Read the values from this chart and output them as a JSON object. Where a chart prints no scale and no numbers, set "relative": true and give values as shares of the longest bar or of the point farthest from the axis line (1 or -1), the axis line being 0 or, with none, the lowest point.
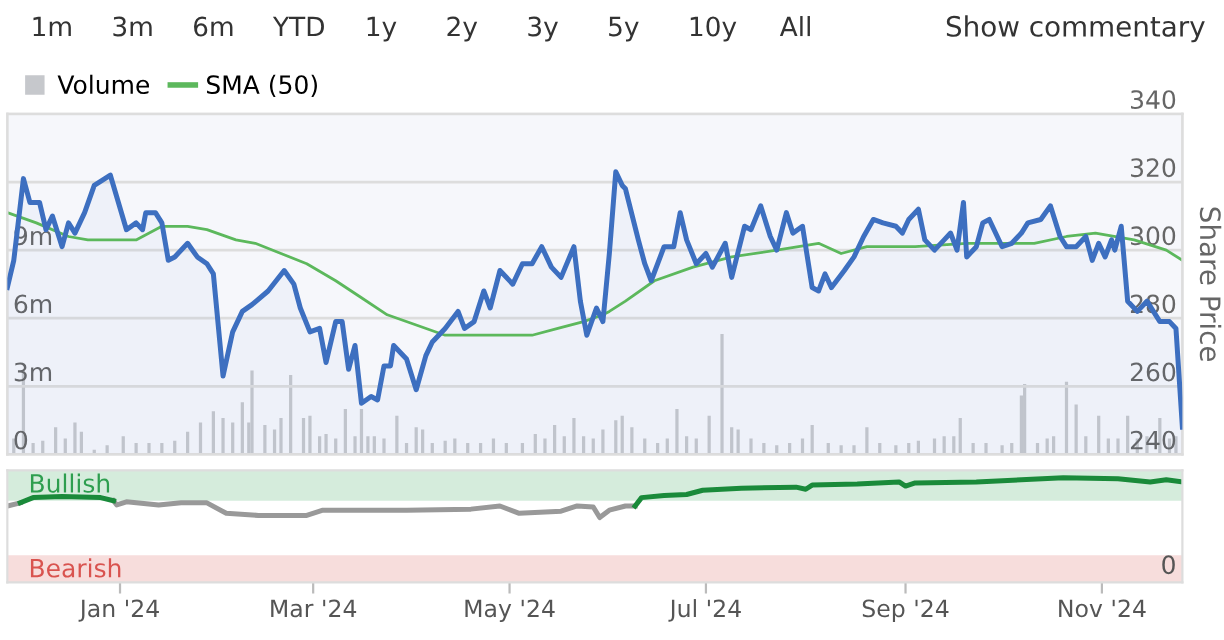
{
  "chart_data": [
    {
      "type": "area",
      "xlim": [
        "2023-11-27",
        "2024-11-26"
      ],
      "ylim": [
        0,
        15
      ],
      "yticks": [
        0,
        {
          "value": 3,
          "label": "3m"
        },
        {
          "value": 6,
          "label": "6m"
        },
        {
          "value": 9,
          "label": "9m"
        }
      ],
      "y2lim": [
        240,
        340
      ],
      "y2ticks": [
        240,
        260,
        280,
        300,
        320,
        340
      ],
      "y2label": "Share Price",
      "grid": "y",
      "legend": "top left",
      "tick_labels": "y",
      "annotations": [
        "1m",
        "3m",
        "6m",
        "YTD",
        "1y",
        "2y",
        "3y",
        "5y",
        "10y",
        "All",
        "Show commentary"
      ],
      "series": [
        {
          "type": "bar",
          "name": "Volume",
          "color": "#c6c8cc",
          "x": [
            "2023-11-29",
            "2023-12-02",
            "2023-12-05",
            "2023-12-08",
            "2023-12-12",
            "2023-12-15",
            "2023-12-18",
            "2023-12-20",
            "2023-12-24",
            "2023-12-28",
            "2024-01-02",
            "2024-01-06",
            "2024-01-10",
            "2024-01-14",
            "2024-01-18",
            "2024-01-22",
            "2024-01-26",
            "2024-01-30",
            "2024-02-02",
            "2024-02-05",
            "2024-02-08",
            "2024-02-10",
            "2024-02-11",
            "2024-02-15",
            "2024-02-18",
            "2024-02-20",
            "2024-02-23",
            "2024-02-27",
            "2024-02-29",
            "2024-03-03",
            "2024-03-05",
            "2024-03-08",
            "2024-03-11",
            "2024-03-14",
            "2024-03-16",
            "2024-03-18",
            "2024-03-20",
            "2024-03-23",
            "2024-03-27",
            "2024-03-30",
            "2024-04-02",
            "2024-04-04",
            "2024-04-07",
            "2024-04-11",
            "2024-04-14",
            "2024-04-18",
            "2024-04-22",
            "2024-04-26",
            "2024-04-30",
            "2024-05-05",
            "2024-05-09",
            "2024-05-12",
            "2024-05-15",
            "2024-05-18",
            "2024-05-21",
            "2024-05-24",
            "2024-05-27",
            "2024-05-30",
            "2024-06-03",
            "2024-06-05",
            "2024-06-08",
            "2024-06-12",
            "2024-06-16",
            "2024-06-19",
            "2024-06-22",
            "2024-06-25",
            "2024-06-28",
            "2024-07-02",
            "2024-07-06",
            "2024-07-09",
            "2024-07-11",
            "2024-07-15",
            "2024-07-19",
            "2024-07-23",
            "2024-07-27",
            "2024-07-31",
            "2024-08-03",
            "2024-08-08",
            "2024-08-12",
            "2024-08-16",
            "2024-08-20",
            "2024-08-24",
            "2024-08-29",
            "2024-09-02",
            "2024-09-05",
            "2024-09-10",
            "2024-09-13",
            "2024-09-16",
            "2024-09-18",
            "2024-09-22",
            "2024-09-26",
            "2024-10-01",
            "2024-10-04",
            "2024-10-07",
            "2024-10-08",
            "2024-10-12",
            "2024-10-15",
            "2024-10-17",
            "2024-10-21",
            "2024-10-24",
            "2024-10-27",
            "2024-10-31",
            "2024-11-03",
            "2024-11-06",
            "2024-11-09",
            "2024-11-12",
            "2024-11-15",
            "2024-11-19",
            "2024-11-22",
            "2024-11-24"
          ],
          "values": [
            0.7,
            3.7,
            0.5,
            0.6,
            1.2,
            0.7,
            1.4,
            1.0,
            0.2,
            0.4,
            0.8,
            0.5,
            0.5,
            0.5,
            0.6,
            1.0,
            1.4,
            1.9,
            1.6,
            1.4,
            2.3,
            1.4,
            3.7,
            1.3,
            1.1,
            1.6,
            3.5,
            1.6,
            1.7,
            0.8,
            0.9,
            0.7,
            2.0,
            0.8,
            2.0,
            0.8,
            0.8,
            0.7,
            1.7,
            0.5,
            1.2,
            1.1,
            0.5,
            0.6,
            0.7,
            0.5,
            0.5,
            0.7,
            0.5,
            0.5,
            0.9,
            0.7,
            1.3,
            0.8,
            1.6,
            0.8,
            0.7,
            1.1,
            1.5,
            1.7,
            1.2,
            0.7,
            0.5,
            0.7,
            2.0,
            0.8,
            0.7,
            1.7,
            5.3,
            1.2,
            1.1,
            0.7,
            0.5,
            0.4,
            0.5,
            0.7,
            1.3,
            0.5,
            0.4,
            0.4,
            1.2,
            0.5,
            0.4,
            0.5,
            0.6,
            0.7,
            0.8,
            0.8,
            1.6,
            0.5,
            0.5,
            0.4,
            0.5,
            2.6,
            3.1,
            0.5,
            0.7,
            0.8,
            3.2,
            2.2,
            0.8,
            1.7,
            0.7,
            0.7,
            1.7,
            0.7,
            0.8,
            1.6,
            0.7,
            0.8
          ]
        },
        {
          "type": "area",
          "axis": "y2",
          "color": "#3d6fc0",
          "x": [
            "2023-11-27",
            "2023-11-29",
            "2023-12-02",
            "2023-12-04",
            "2023-12-07",
            "2023-12-09",
            "2023-12-11",
            "2023-12-14",
            "2023-12-16",
            "2023-12-18",
            "2023-12-21",
            "2023-12-24",
            "2023-12-29",
            "2024-01-03",
            "2024-01-06",
            "2024-01-08",
            "2024-01-09",
            "2024-01-12",
            "2024-01-14",
            "2024-01-16",
            "2024-01-18",
            "2024-01-22",
            "2024-01-25",
            "2024-01-28",
            "2024-01-30",
            "2024-02-02",
            "2024-02-05",
            "2024-02-08",
            "2024-02-11",
            "2024-02-16",
            "2024-02-21",
            "2024-02-24",
            "2024-02-26",
            "2024-02-29",
            "2024-03-03",
            "2024-03-05",
            "2024-03-08",
            "2024-03-10",
            "2024-03-12",
            "2024-03-14",
            "2024-03-16",
            "2024-03-19",
            "2024-03-21",
            "2024-03-23",
            "2024-03-25",
            "2024-03-26",
            "2024-03-30",
            "2024-04-02",
            "2024-04-05",
            "2024-04-07",
            "2024-04-11",
            "2024-04-15",
            "2024-04-17",
            "2024-04-20",
            "2024-04-23",
            "2024-04-25",
            "2024-04-28",
            "2024-05-02",
            "2024-05-05",
            "2024-05-08",
            "2024-05-11",
            "2024-05-14",
            "2024-05-17",
            "2024-05-21",
            "2024-05-23",
            "2024-05-25",
            "2024-05-28",
            "2024-05-30",
            "2024-06-01",
            "2024-06-03",
            "2024-06-05",
            "2024-06-06",
            "2024-06-10",
            "2024-06-12",
            "2024-06-14",
            "2024-06-18",
            "2024-06-21",
            "2024-06-23",
            "2024-06-25",
            "2024-06-28",
            "2024-07-01",
            "2024-07-03",
            "2024-07-07",
            "2024-07-09",
            "2024-07-13",
            "2024-07-15",
            "2024-07-18",
            "2024-07-21",
            "2024-07-23",
            "2024-07-26",
            "2024-07-28",
            "2024-07-31",
            "2024-08-03",
            "2024-08-05",
            "2024-08-07",
            "2024-08-09",
            "2024-08-13",
            "2024-08-16",
            "2024-08-19",
            "2024-08-22",
            "2024-08-25",
            "2024-08-29",
            "2024-08-31",
            "2024-09-02",
            "2024-09-05",
            "2024-09-07",
            "2024-09-10",
            "2024-09-13",
            "2024-09-15",
            "2024-09-17",
            "2024-09-19",
            "2024-09-20",
            "2024-09-23",
            "2024-09-25",
            "2024-09-27",
            "2024-10-01",
            "2024-10-04",
            "2024-10-07",
            "2024-10-09",
            "2024-10-13",
            "2024-10-16",
            "2024-10-19",
            "2024-10-21",
            "2024-10-24",
            "2024-10-27",
            "2024-10-29",
            "2024-10-31",
            "2024-11-02",
            "2024-11-04",
            "2024-11-05",
            "2024-11-07",
            "2024-11-09",
            "2024-11-12",
            "2024-11-15",
            "2024-11-19",
            "2024-11-22",
            "2024-11-24",
            "2024-11-26"
          ],
          "values": [
            289,
            297,
            321,
            314,
            314,
            306,
            310,
            301,
            308,
            305,
            311,
            319,
            322,
            306,
            308,
            306,
            311,
            311,
            308,
            297,
            298,
            302,
            298,
            296,
            293,
            263,
            276,
            282,
            284,
            288,
            294,
            290,
            283,
            276,
            277,
            267,
            279,
            279,
            265,
            272,
            255,
            257,
            256,
            266,
            266,
            272,
            268,
            259,
            269,
            273,
            277,
            282,
            277,
            279,
            288,
            283,
            294,
            290,
            296,
            296,
            301,
            295,
            292,
            301,
            285,
            275,
            283,
            279,
            299,
            323,
            319,
            318,
            303,
            296,
            291,
            301,
            301,
            311,
            303,
            296,
            299,
            295,
            302,
            292,
            307,
            306,
            313,
            304,
            300,
            311,
            305,
            307,
            289,
            288,
            293,
            289,
            294,
            298,
            304,
            309,
            308,
            307,
            305,
            309,
            312,
            303,
            300,
            303,
            305,
            300,
            314,
            298,
            301,
            308,
            309,
            301,
            302,
            305,
            308,
            309,
            313,
            304,
            301,
            301,
            304,
            297,
            302,
            298,
            303,
            300,
            307,
            285,
            282,
            285,
            279,
            279,
            277,
            248
          ]
        },
        {
          "type": "line",
          "axis": "y2",
          "name": "SMA (50)",
          "color": "#5cb85c",
          "x": [
            "2023-11-27",
            "2023-12-06",
            "2023-12-16",
            "2023-12-22",
            "2024-01-06",
            "2024-01-14",
            "2024-01-22",
            "2024-01-28",
            "2024-02-06",
            "2024-02-12",
            "2024-02-20",
            "2024-02-28",
            "2024-03-08",
            "2024-03-16",
            "2024-03-24",
            "2024-04-02",
            "2024-04-11",
            "2024-04-22",
            "2024-05-08",
            "2024-05-16",
            "2024-05-24",
            "2024-05-30",
            "2024-06-01",
            "2024-06-06",
            "2024-06-15",
            "2024-06-27",
            "2024-07-09",
            "2024-07-23",
            "2024-08-05",
            "2024-08-12",
            "2024-08-20",
            "2024-09-04",
            "2024-09-20",
            "2024-10-11",
            "2024-10-21",
            "2024-10-30",
            "2024-11-11",
            "2024-11-21",
            "2024-11-26"
          ],
          "values": [
            311,
            308,
            304,
            303,
            303,
            307,
            307,
            306,
            303,
            302,
            299,
            296,
            291,
            286,
            281,
            278,
            275,
            275,
            275,
            277,
            279,
            281,
            282,
            285,
            291,
            295,
            298,
            300,
            302,
            299,
            301,
            301,
            302,
            302,
            304,
            305,
            303,
            300,
            297
          ]
        }
      ]
    },
    {
      "type": "line",
      "relative": true,
      "xlim": [
        "2023-11-27",
        "2024-11-26"
      ],
      "xticks": [
        {
          "value": "2024-01-01",
          "label": "Jan '24"
        },
        {
          "value": "2024-03-01",
          "label": "Mar '24"
        },
        {
          "value": "2024-05-01",
          "label": "May '24"
        },
        {
          "value": "2024-07-01",
          "label": "Jul '24"
        },
        {
          "value": "2024-09-01",
          "label": "Sep '24"
        },
        {
          "value": "2024-11-01",
          "label": "Nov '24"
        }
      ],
      "annotations": [
        "0"
      ],
      "bands": [
        {
          "axis": "y",
          "from": 0.78,
          "to": 1.07,
          "label": "Bullish",
          "color": "#2e9e4f"
        },
        {
          "axis": "y",
          "from": 0,
          "to": 0.26,
          "label": "Bearish",
          "color": "#d9534f"
        }
      ],
      "x": [
        "2023-11-27",
        "2023-12-01",
        "2023-12-05",
        "2023-12-14",
        "2023-12-26",
        "2023-12-30",
        "2023-12-31",
        "2024-01-03",
        "2024-01-13",
        "2024-01-20",
        "2024-01-28",
        "2024-02-03",
        "2024-02-13",
        "2024-02-28",
        "2024-03-04",
        "2024-03-13",
        "2024-03-30",
        "2024-04-19",
        "2024-04-28",
        "2024-05-04",
        "2024-05-17",
        "2024-05-22",
        "2024-05-27",
        "2024-05-29",
        "2024-06-01",
        "2024-06-06",
        "2024-06-09",
        "2024-06-11",
        "2024-06-18",
        "2024-06-25",
        "2024-06-30",
        "2024-07-12",
        "2024-07-29",
        "2024-08-01",
        "2024-08-03",
        "2024-08-17",
        "2024-08-30",
        "2024-09-01",
        "2024-09-04",
        "2024-09-23",
        "2024-10-20",
        "2024-11-06",
        "2024-11-16",
        "2024-11-21",
        "2024-11-26"
      ],
      "series": [
        {
          "color": "#999999",
          "values": [
            0.73,
            0.76,
            null,
            null,
            null,
            0.78,
            0.74,
            0.77,
            0.74,
            0.76,
            0.76,
            0.66,
            0.64,
            0.64,
            0.69,
            0.69,
            0.69,
            0.7,
            0.73,
            0.66,
            0.68,
            0.73,
            0.72,
            0.62,
            0.69,
            0.73,
            0.73,
            null,
            null,
            null,
            null,
            null,
            null,
            null,
            null,
            null,
            null,
            null,
            null,
            null,
            null,
            null,
            null,
            null,
            null
          ]
        },
        {
          "color": "#1a8a3a",
          "values": [
            null,
            0.76,
            0.81,
            0.82,
            0.81,
            0.78,
            null,
            null,
            null,
            null,
            null,
            null,
            null,
            null,
            null,
            null,
            null,
            null,
            null,
            null,
            null,
            null,
            null,
            null,
            null,
            null,
            0.73,
            0.81,
            0.83,
            0.84,
            0.88,
            0.9,
            0.91,
            0.89,
            0.93,
            0.94,
            0.96,
            0.92,
            0.95,
            0.96,
            1,
            0.99,
            0.96,
            0.98,
            0.96
          ]
        }
      ]
    }
  ]
}
